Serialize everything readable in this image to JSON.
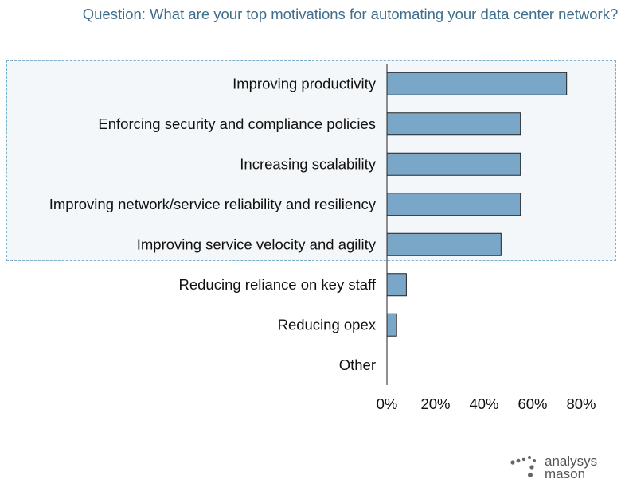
{
  "chart_data": {
    "type": "bar",
    "orientation": "horizontal",
    "title": "Question: What are your top motivations for automating your data center network?",
    "categories": [
      "Improving productivity",
      "Enforcing security and compliance policies",
      "Increasing scalability",
      "Improving network/service reliability and resiliency",
      "Improving service velocity and agility",
      "Reducing reliance on key staff",
      "Reducing opex",
      "Other"
    ],
    "values": [
      74,
      55,
      55,
      55,
      47,
      8,
      4,
      0
    ],
    "xlim": [
      0,
      80
    ],
    "xticks": [
      "0%",
      "20%",
      "40%",
      "60%",
      "80%"
    ],
    "highlighted_categories": 5,
    "bar_color": "#7aa7c7",
    "highlight_border_color": "#7fb0cc",
    "grid": false
  },
  "logo": {
    "line1": "analysys",
    "line2": "mason"
  }
}
